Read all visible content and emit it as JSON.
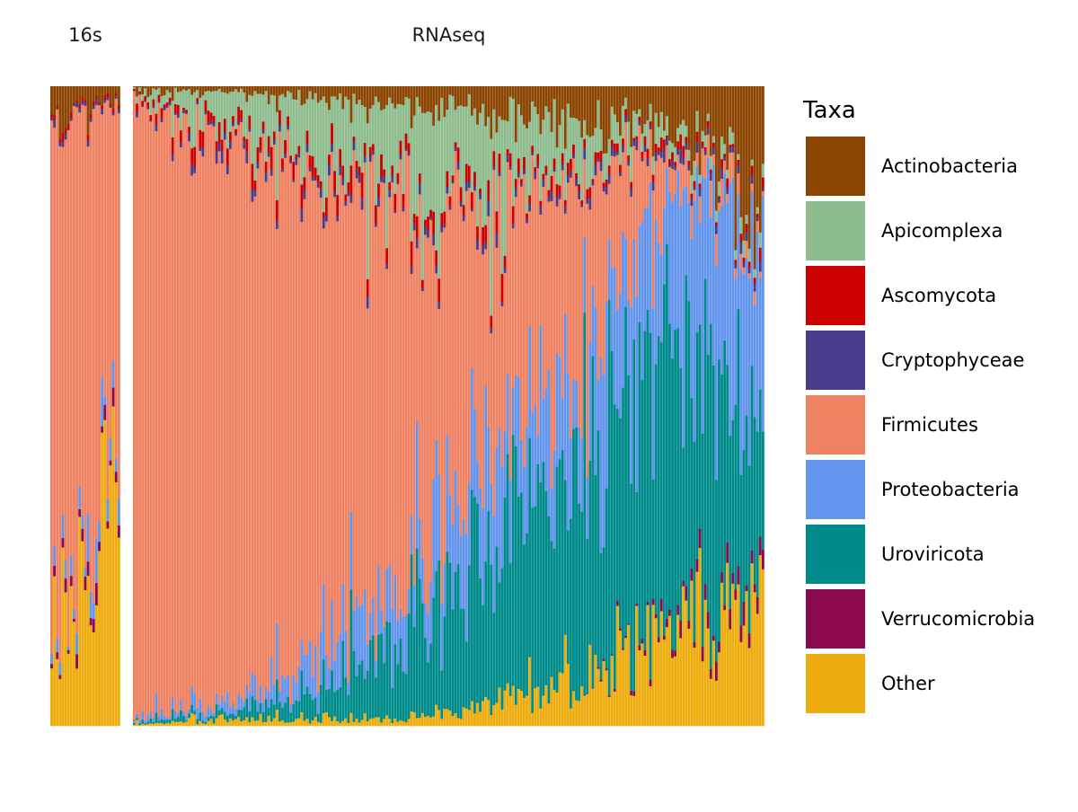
{
  "chart_data": {
    "type": "bar",
    "stacking": "fill",
    "orientation": "vertical",
    "axes_visible": false,
    "grid": false,
    "legend_placement": "right",
    "legend_title": "Taxa",
    "taxa": [
      {
        "name": "Actinobacteria",
        "color": "#8B4500"
      },
      {
        "name": "Apicomplexa",
        "color": "#8FBC8F"
      },
      {
        "name": "Ascomycota",
        "color": "#CD0000"
      },
      {
        "name": "Cryptophyceae",
        "color": "#483D8B"
      },
      {
        "name": "Firmicutes",
        "color": "#EE8262"
      },
      {
        "name": "Proteobacteria",
        "color": "#6495ED"
      },
      {
        "name": "Uroviricota",
        "color": "#008B8B"
      },
      {
        "name": "Verrucomicrobia",
        "color": "#8B0A50"
      },
      {
        "name": "Other",
        "color": "#EEAD0E"
      }
    ],
    "panels": [
      {
        "label": "16s",
        "samples": 25,
        "profile": [
          [
            0.05,
            0.0,
            0.005,
            0.005,
            0.82,
            0.02,
            0.0,
            0.01,
            0.09
          ],
          [
            0.04,
            0.0,
            0.005,
            0.005,
            0.78,
            0.02,
            0.0,
            0.01,
            0.14
          ],
          [
            0.03,
            0.0,
            0.005,
            0.005,
            0.7,
            0.03,
            0.0,
            0.02,
            0.21
          ],
          [
            0.03,
            0.0,
            0.005,
            0.005,
            0.58,
            0.04,
            0.0,
            0.02,
            0.32
          ],
          [
            0.02,
            0.0,
            0.005,
            0.005,
            0.42,
            0.04,
            0.0,
            0.02,
            0.48
          ]
        ]
      },
      {
        "label": "RNAseq",
        "samples": 230,
        "profile": [
          [
            0.005,
            0.005,
            0.003,
            0.002,
            0.975,
            0.005,
            0.003,
            0.0,
            0.002
          ],
          [
            0.01,
            0.05,
            0.02,
            0.01,
            0.87,
            0.02,
            0.01,
            0.0,
            0.01
          ],
          [
            0.02,
            0.1,
            0.02,
            0.01,
            0.74,
            0.06,
            0.04,
            0.0,
            0.01
          ],
          [
            0.03,
            0.14,
            0.02,
            0.01,
            0.58,
            0.09,
            0.12,
            0.0,
            0.01
          ],
          [
            0.04,
            0.12,
            0.02,
            0.01,
            0.42,
            0.14,
            0.22,
            0.0,
            0.03
          ],
          [
            0.05,
            0.06,
            0.01,
            0.01,
            0.25,
            0.17,
            0.37,
            0.0,
            0.08
          ],
          [
            0.07,
            0.02,
            0.01,
            0.01,
            0.06,
            0.23,
            0.44,
            0.01,
            0.15
          ],
          [
            0.2,
            0.02,
            0.01,
            0.01,
            0.01,
            0.25,
            0.3,
            0.03,
            0.17
          ]
        ]
      }
    ]
  }
}
